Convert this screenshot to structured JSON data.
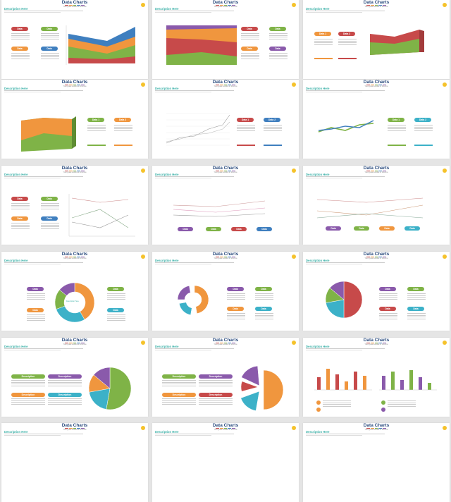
{
  "slide_common": {
    "title": "Data Charts",
    "subtitle": "Your great subtitle in this line",
    "description_heading": "Description Here"
  },
  "pill_labels": {
    "data": "Data",
    "data1": "Data 1",
    "data2": "Data 2",
    "description": "Description"
  },
  "colors": {
    "red": "#c74a4a",
    "green": "#7fb347",
    "orange": "#f0963e",
    "blue": "#3f7fbf",
    "purple": "#8a5aab",
    "teal": "#3cb1c8",
    "accent": "#3cb1a8",
    "title": "#2b4c7e",
    "yellow": "#f5c22b"
  },
  "donut_center_label": "Description Here"
}
